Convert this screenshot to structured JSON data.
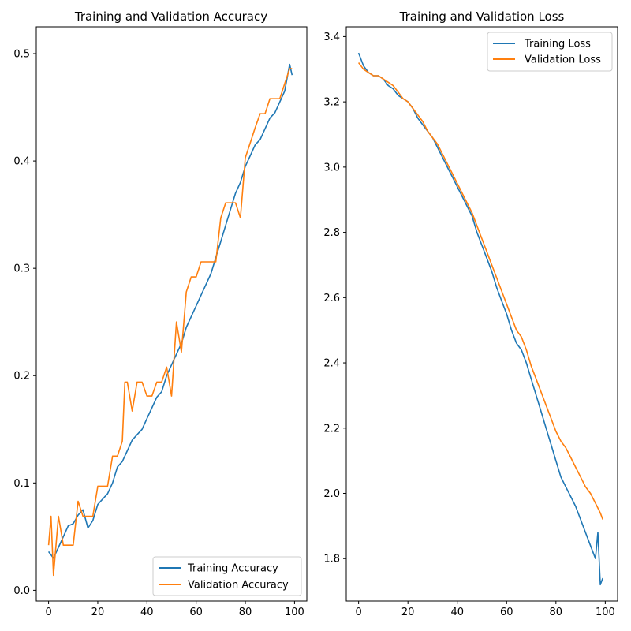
{
  "chart_data": [
    {
      "type": "line",
      "title": "Training and Validation Accuracy",
      "xlabel": "",
      "ylabel": "",
      "xlim": [
        -5,
        105
      ],
      "ylim": [
        -0.01,
        0.525
      ],
      "xticks": [
        0,
        20,
        40,
        60,
        80,
        100
      ],
      "yticks": [
        0.0,
        0.1,
        0.2,
        0.3,
        0.4,
        0.5
      ],
      "grid": false,
      "legend": "lower-right",
      "series": [
        {
          "name": "Training Accuracy",
          "color": "#1f77b4",
          "x": [
            0,
            2,
            4,
            6,
            8,
            10,
            12,
            14,
            16,
            18,
            20,
            22,
            24,
            26,
            28,
            30,
            32,
            34,
            36,
            38,
            40,
            42,
            44,
            46,
            48,
            50,
            52,
            54,
            56,
            58,
            60,
            62,
            64,
            66,
            68,
            70,
            72,
            74,
            76,
            78,
            80,
            82,
            84,
            86,
            88,
            90,
            92,
            94,
            96,
            98,
            99
          ],
          "values": [
            0.036,
            0.03,
            0.04,
            0.05,
            0.06,
            0.062,
            0.07,
            0.075,
            0.058,
            0.065,
            0.08,
            0.085,
            0.09,
            0.1,
            0.115,
            0.12,
            0.13,
            0.14,
            0.145,
            0.15,
            0.16,
            0.17,
            0.18,
            0.185,
            0.2,
            0.21,
            0.22,
            0.23,
            0.245,
            0.255,
            0.265,
            0.275,
            0.285,
            0.295,
            0.31,
            0.325,
            0.34,
            0.355,
            0.37,
            0.38,
            0.395,
            0.405,
            0.415,
            0.42,
            0.43,
            0.44,
            0.445,
            0.455,
            0.465,
            0.49,
            0.48
          ]
        },
        {
          "name": "Validation Accuracy",
          "color": "#ff7f0e",
          "x": [
            0,
            1,
            2,
            4,
            6,
            8,
            10,
            12,
            14,
            16,
            18,
            20,
            22,
            24,
            26,
            28,
            30,
            31,
            32,
            34,
            36,
            38,
            40,
            42,
            44,
            46,
            48,
            50,
            52,
            54,
            56,
            58,
            60,
            62,
            64,
            66,
            68,
            70,
            72,
            74,
            76,
            78,
            80,
            82,
            84,
            86,
            88,
            90,
            92,
            94,
            96,
            98,
            99
          ],
          "values": [
            0.042,
            0.069,
            0.014,
            0.069,
            0.042,
            0.042,
            0.042,
            0.083,
            0.069,
            0.069,
            0.069,
            0.097,
            0.097,
            0.097,
            0.125,
            0.125,
            0.139,
            0.194,
            0.194,
            0.167,
            0.194,
            0.194,
            0.181,
            0.181,
            0.194,
            0.194,
            0.208,
            0.181,
            0.25,
            0.222,
            0.278,
            0.292,
            0.292,
            0.306,
            0.306,
            0.306,
            0.306,
            0.347,
            0.361,
            0.361,
            0.361,
            0.347,
            0.403,
            0.417,
            0.431,
            0.444,
            0.444,
            0.458,
            0.458,
            0.458,
            0.472,
            0.486,
            0.486
          ]
        }
      ]
    },
    {
      "type": "line",
      "title": "Training and Validation Loss",
      "xlabel": "",
      "ylabel": "",
      "xlim": [
        -5,
        105
      ],
      "ylim": [
        1.67,
        3.43
      ],
      "xticks": [
        0,
        20,
        40,
        60,
        80,
        100
      ],
      "yticks": [
        1.8,
        2.0,
        2.2,
        2.4,
        2.6,
        2.8,
        3.0,
        3.2,
        3.4
      ],
      "grid": false,
      "legend": "top-right",
      "series": [
        {
          "name": "Training Loss",
          "color": "#1f77b4",
          "x": [
            0,
            2,
            4,
            6,
            8,
            10,
            12,
            14,
            16,
            18,
            20,
            22,
            24,
            26,
            28,
            30,
            32,
            34,
            36,
            38,
            40,
            42,
            44,
            46,
            48,
            50,
            52,
            54,
            56,
            58,
            60,
            62,
            64,
            66,
            68,
            70,
            72,
            74,
            76,
            78,
            80,
            82,
            84,
            86,
            88,
            90,
            92,
            94,
            96,
            97,
            98,
            99
          ],
          "values": [
            3.35,
            3.31,
            3.29,
            3.28,
            3.28,
            3.27,
            3.25,
            3.24,
            3.22,
            3.21,
            3.2,
            3.18,
            3.15,
            3.13,
            3.11,
            3.09,
            3.06,
            3.03,
            3.0,
            2.97,
            2.94,
            2.91,
            2.88,
            2.85,
            2.8,
            2.76,
            2.72,
            2.68,
            2.63,
            2.59,
            2.55,
            2.5,
            2.46,
            2.44,
            2.4,
            2.35,
            2.3,
            2.25,
            2.2,
            2.15,
            2.1,
            2.05,
            2.02,
            1.99,
            1.96,
            1.92,
            1.88,
            1.84,
            1.8,
            1.88,
            1.72,
            1.74
          ]
        },
        {
          "name": "Validation Loss",
          "color": "#ff7f0e",
          "x": [
            0,
            2,
            4,
            6,
            8,
            10,
            12,
            14,
            16,
            18,
            20,
            22,
            24,
            26,
            28,
            30,
            32,
            34,
            36,
            38,
            40,
            42,
            44,
            46,
            48,
            50,
            52,
            54,
            56,
            58,
            60,
            62,
            64,
            66,
            68,
            70,
            72,
            74,
            76,
            78,
            80,
            82,
            84,
            86,
            88,
            90,
            92,
            94,
            96,
            98,
            99
          ],
          "values": [
            3.32,
            3.3,
            3.29,
            3.28,
            3.28,
            3.27,
            3.26,
            3.25,
            3.23,
            3.21,
            3.2,
            3.18,
            3.16,
            3.14,
            3.11,
            3.09,
            3.07,
            3.04,
            3.01,
            2.98,
            2.95,
            2.92,
            2.89,
            2.86,
            2.82,
            2.78,
            2.74,
            2.7,
            2.66,
            2.62,
            2.58,
            2.54,
            2.5,
            2.48,
            2.44,
            2.39,
            2.35,
            2.31,
            2.27,
            2.23,
            2.19,
            2.16,
            2.14,
            2.11,
            2.08,
            2.05,
            2.02,
            2.0,
            1.97,
            1.94,
            1.92
          ]
        }
      ]
    }
  ]
}
